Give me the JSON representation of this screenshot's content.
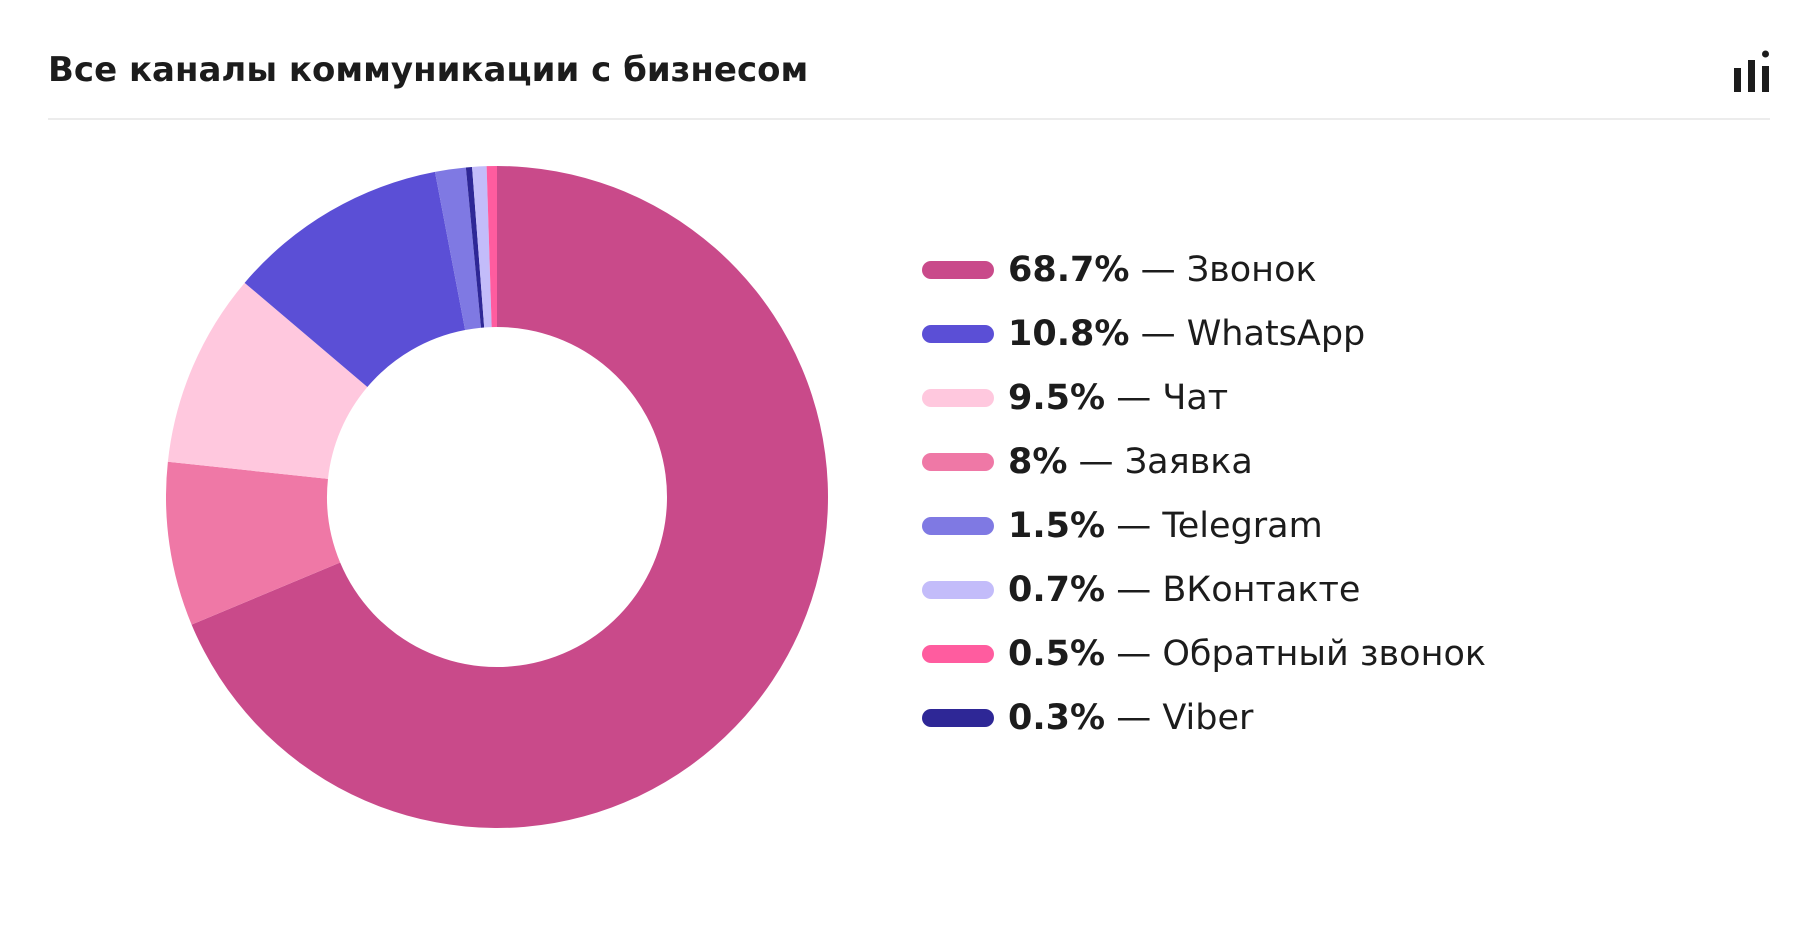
{
  "header": {
    "title": "Все каналы коммуникации с бизнесом",
    "chart_type_icon": "bar-chart-icon"
  },
  "legend": {
    "separator": "—"
  },
  "chart_data": {
    "type": "pie",
    "variant": "donut",
    "title": "Все каналы коммуникации с бизнесом",
    "legend_position": "right",
    "slices": [
      {
        "label": "Звонок",
        "value": 68.7,
        "pct_label": "68.7%",
        "color": "#c94a8a"
      },
      {
        "label": "WhatsApp",
        "value": 10.8,
        "pct_label": "10.8%",
        "color": "#5b4fd6"
      },
      {
        "label": "Чат",
        "value": 9.5,
        "pct_label": "9.5%",
        "color": "#ffc8de"
      },
      {
        "label": "Заявка",
        "value": 8,
        "pct_label": "8%",
        "color": "#ef78a6"
      },
      {
        "label": "Telegram",
        "value": 1.5,
        "pct_label": "1.5%",
        "color": "#7f79e3"
      },
      {
        "label": "ВКонтакте",
        "value": 0.7,
        "pct_label": "0.7%",
        "color": "#c3bcfa"
      },
      {
        "label": "Обратный звонок",
        "value": 0.5,
        "pct_label": "0.5%",
        "color": "#ff5c9f"
      },
      {
        "label": "Viber",
        "value": 0.3,
        "pct_label": "0.3%",
        "color": "#2e2796"
      }
    ],
    "slice_order_clockwise_from_top": [
      "Звонок",
      "Заявка",
      "Чат",
      "WhatsApp",
      "Telegram",
      "Viber",
      "ВКонтакте",
      "Обратный звонок"
    ]
  }
}
